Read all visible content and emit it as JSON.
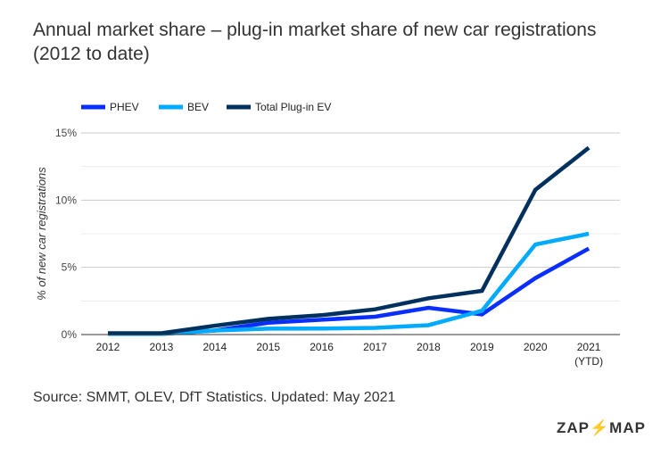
{
  "chart_data": {
    "type": "line",
    "title": "Annual market share – plug-in market share of new car registrations (2012 to date)",
    "ylabel": "% of new car registrations",
    "xlabel": "",
    "categories": [
      "2012",
      "2013",
      "2014",
      "2015",
      "2016",
      "2017",
      "2018",
      "2019",
      "2020",
      "2021"
    ],
    "category_sublabels": {
      "2021": "(YTD)"
    },
    "yticks": [
      "0%",
      "5%",
      "10%",
      "15%"
    ],
    "ylim": [
      0,
      15
    ],
    "grid": true,
    "legend": "top-left",
    "series": [
      {
        "name": "PHEV",
        "color": "#0a2ffc",
        "values": [
          0.05,
          0.05,
          0.3,
          0.88,
          1.1,
          1.33,
          1.99,
          1.5,
          4.2,
          6.4
        ]
      },
      {
        "name": "BEV",
        "color": "#00aaff",
        "values": [
          0.05,
          0.05,
          0.3,
          0.44,
          0.45,
          0.5,
          0.7,
          1.77,
          6.7,
          7.5
        ]
      },
      {
        "name": "Total Plug-in EV",
        "color": "#00305e",
        "values": [
          0.1,
          0.1,
          0.66,
          1.17,
          1.44,
          1.88,
          2.7,
          3.25,
          10.77,
          13.9
        ]
      }
    ]
  },
  "source": "Source: SMMT, OLEV, DfT Statistics. Updated: May 2021",
  "logo": {
    "left": "ZAP",
    "right": "MAP",
    "brand_color": "#f26b21"
  }
}
